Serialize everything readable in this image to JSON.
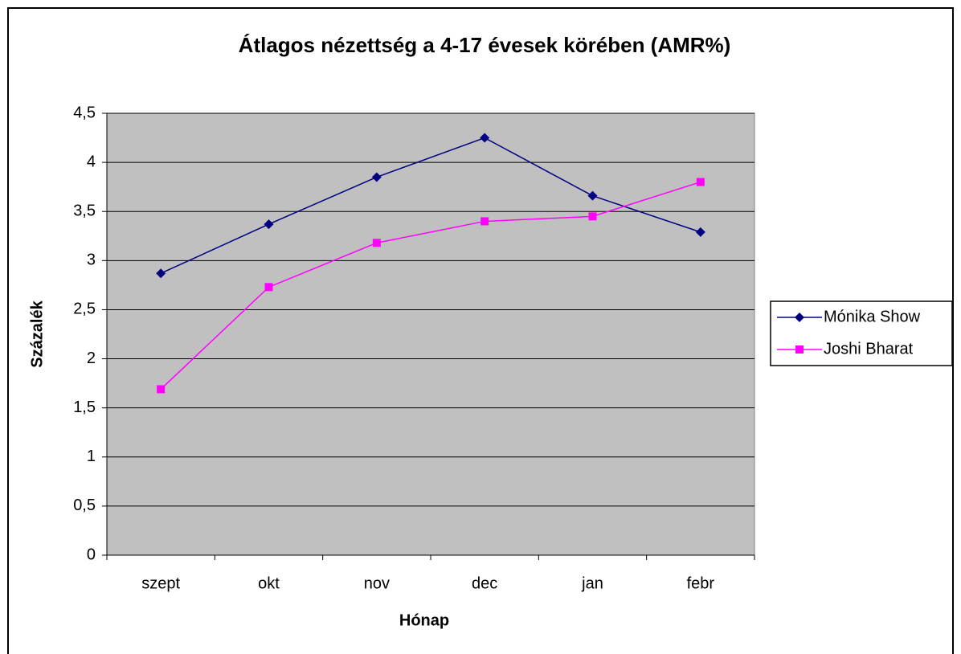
{
  "chart_data": {
    "type": "line",
    "title": "Átlagos nézettség a 4-17 évesek körében (AMR%)",
    "x_label": "Hónap",
    "y_label": "Százalék",
    "categories": [
      "szept",
      "okt",
      "nov",
      "dec",
      "jan",
      "febr"
    ],
    "series": [
      {
        "name": "Mónika Show",
        "color": "#000080",
        "marker": "diamond",
        "values": [
          2.87,
          3.37,
          3.85,
          4.25,
          3.66,
          3.29
        ]
      },
      {
        "name": "Joshi Bharat",
        "color": "#ff00ff",
        "marker": "square",
        "values": [
          1.69,
          2.73,
          3.18,
          3.4,
          3.45,
          3.8
        ]
      }
    ],
    "ylim": [
      0,
      4.5
    ],
    "yticks": [
      0,
      {
        "value": 0.5,
        "label": "0,5"
      },
      1,
      {
        "value": 1.5,
        "label": "1,5"
      },
      2,
      {
        "value": 2.5,
        "label": "2,5"
      },
      3,
      {
        "value": 3.5,
        "label": "3,5"
      },
      4,
      {
        "value": 4.5,
        "label": "4,5"
      }
    ],
    "grid": true,
    "legend": "right",
    "plot_background": "#c0c0c0"
  }
}
